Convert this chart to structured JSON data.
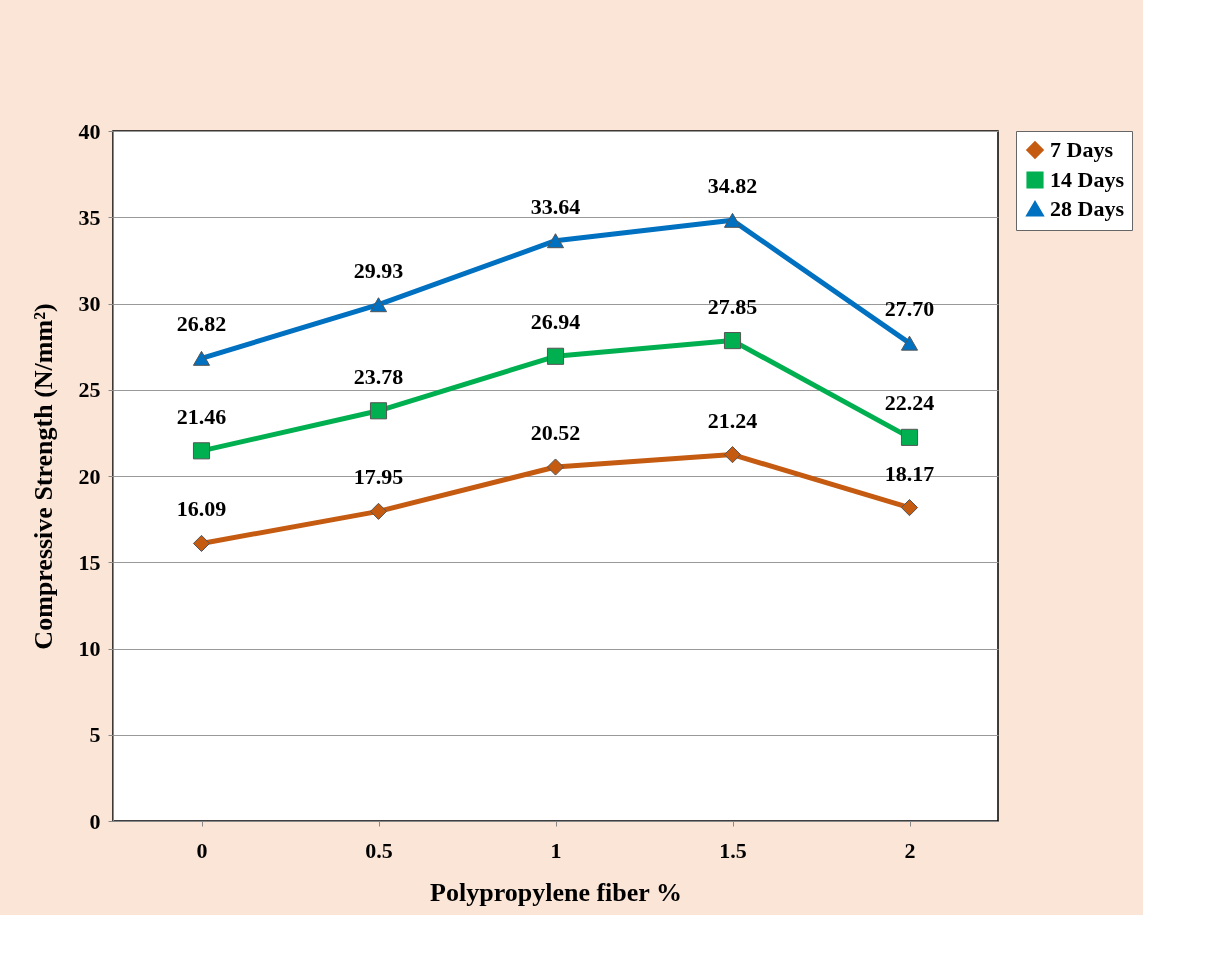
{
  "chart_data": {
    "type": "line",
    "xlabel": "Polypropylene fiber %",
    "ylabel": "Compressive Strength (N/mm²)",
    "categories": [
      "0",
      "0.5",
      "1",
      "1.5",
      "2"
    ],
    "series": [
      {
        "name": "7 Days",
        "color": "#c55a11",
        "marker": "diamond",
        "values": [
          16.09,
          17.95,
          20.52,
          21.24,
          18.17
        ],
        "value_labels": [
          "16.09",
          "17.95",
          "20.52",
          "21.24",
          "18.17"
        ]
      },
      {
        "name": "14 Days",
        "color": "#00b050",
        "marker": "square",
        "values": [
          21.46,
          23.78,
          26.94,
          27.85,
          22.24
        ],
        "value_labels": [
          "21.46",
          "23.78",
          "26.94",
          "27.85",
          "22.24"
        ]
      },
      {
        "name": "28 Days",
        "color": "#0070c0",
        "marker": "triangle",
        "values": [
          26.82,
          29.93,
          33.64,
          34.82,
          27.7
        ],
        "value_labels": [
          "26.82",
          "29.93",
          "33.64",
          "34.82",
          "27.70"
        ]
      }
    ],
    "ylim": [
      0,
      40
    ],
    "yticks": [
      0,
      5,
      10,
      15,
      20,
      25,
      30,
      35,
      40
    ],
    "grid": "y",
    "legend": "right",
    "line_style": "solid"
  }
}
